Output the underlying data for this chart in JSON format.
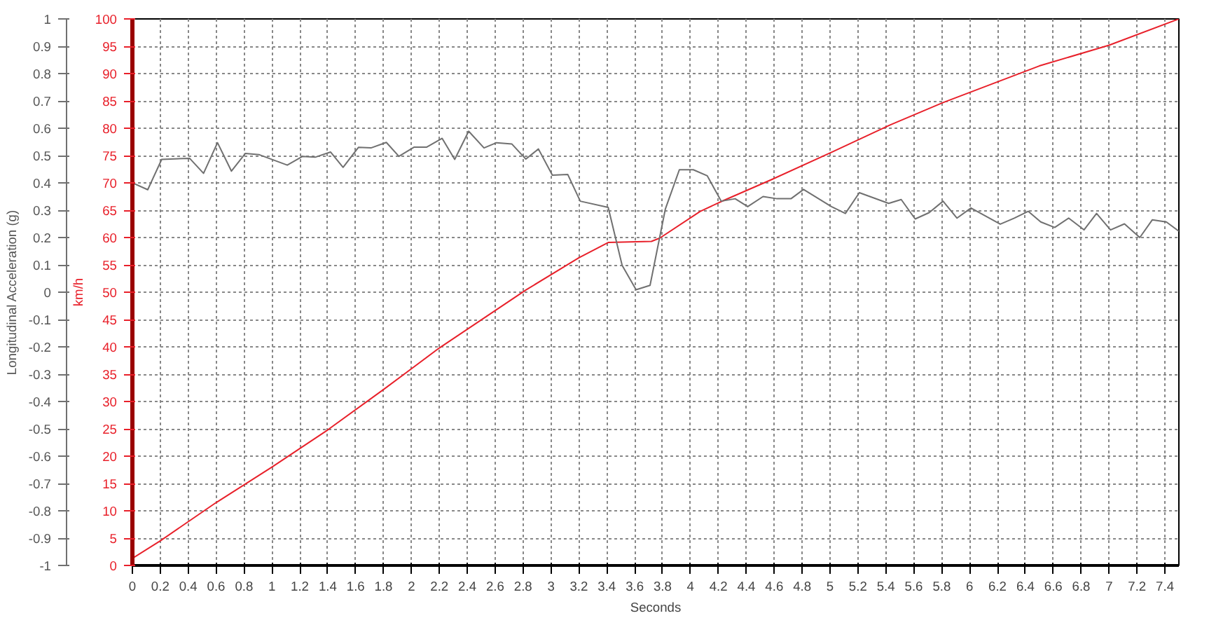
{
  "chart_data": {
    "type": "line",
    "xlabel": "Seconds",
    "ylabel": "km/h",
    "y2label": "Longitudinal Acceleration (g)",
    "xlim": [
      0,
      7.5
    ],
    "xticks": [
      0,
      0.2,
      0.4,
      0.6,
      0.8,
      1,
      1.2,
      1.4,
      1.6,
      1.8,
      2,
      2.2,
      2.4,
      2.6,
      2.8,
      3,
      3.2,
      3.4,
      3.6,
      3.8,
      4,
      4.2,
      4.4,
      4.6,
      4.8,
      5,
      5.2,
      5.4,
      5.6,
      5.8,
      6,
      6.2,
      6.4,
      6.6,
      6.8,
      7,
      7.2,
      7.4
    ],
    "ylim": [
      0,
      100
    ],
    "yticks": [
      0,
      5,
      10,
      15,
      20,
      25,
      30,
      35,
      40,
      45,
      50,
      55,
      60,
      65,
      70,
      75,
      80,
      85,
      90,
      95,
      100
    ],
    "y2lim": [
      -1,
      1
    ],
    "y2ticks": [
      -1,
      -0.9,
      -0.8,
      -0.7,
      -0.6,
      -0.5,
      -0.4,
      -0.3,
      -0.2,
      -0.1,
      0,
      0.1,
      0.2,
      0.3,
      0.4,
      0.5,
      0.6,
      0.7,
      0.8,
      0.9,
      1
    ],
    "grid": true,
    "line_style": "solid",
    "marker": "none",
    "series": [
      {
        "color": "#e8202a",
        "x": [
          0,
          0.2,
          0.6,
          1,
          1.4,
          1.8,
          2,
          2.2,
          2.82,
          3.2,
          3.41,
          3.72,
          3.78,
          4.07,
          4.23,
          4.59,
          5.01,
          5.43,
          5.81,
          6.16,
          6.5,
          7,
          7.5
        ],
        "values": [
          1.3,
          4.5,
          11.5,
          18,
          24.8,
          32.2,
          36,
          39.8,
          50.4,
          56.3,
          59.1,
          59.3,
          59.9,
          64.8,
          66.7,
          70.7,
          75.6,
          80.6,
          84.7,
          88.1,
          91.4,
          95.2,
          100
        ]
      },
      {
        "color": "#707070",
        "axis": "y2",
        "x": [
          0,
          0.11,
          0.21,
          0.41,
          0.51,
          0.61,
          0.71,
          0.81,
          0.91,
          1.11,
          1.22,
          1.31,
          1.42,
          1.51,
          1.62,
          1.71,
          1.82,
          1.91,
          2.02,
          2.11,
          2.22,
          2.31,
          2.41,
          2.52,
          2.61,
          2.72,
          2.82,
          2.91,
          3.01,
          3.12,
          3.21,
          3.41,
          3.51,
          3.61,
          3.71,
          3.82,
          3.92,
          4.02,
          4.12,
          4.22,
          4.32,
          4.41,
          4.52,
          4.62,
          4.72,
          4.81,
          5.01,
          5.11,
          5.21,
          5.42,
          5.51,
          5.61,
          5.71,
          5.81,
          5.91,
          6.01,
          6.22,
          6.32,
          6.42,
          6.51,
          6.61,
          6.71,
          6.82,
          6.91,
          7.01,
          7.11,
          7.22,
          7.31,
          7.41,
          7.5
        ],
        "values": [
          0.4,
          0.375,
          0.486,
          0.49,
          0.435,
          0.547,
          0.443,
          0.508,
          0.503,
          0.465,
          0.497,
          0.494,
          0.513,
          0.457,
          0.53,
          0.528,
          0.548,
          0.497,
          0.531,
          0.531,
          0.563,
          0.486,
          0.589,
          0.528,
          0.547,
          0.542,
          0.487,
          0.524,
          0.428,
          0.431,
          0.333,
          0.31,
          0.098,
          0.009,
          0.025,
          0.305,
          0.448,
          0.448,
          0.426,
          0.333,
          0.342,
          0.313,
          0.35,
          0.342,
          0.342,
          0.376,
          0.313,
          0.288,
          0.364,
          0.325,
          0.339,
          0.268,
          0.291,
          0.333,
          0.271,
          0.308,
          0.249,
          0.271,
          0.296,
          0.257,
          0.237,
          0.271,
          0.228,
          0.288,
          0.228,
          0.25,
          0.2,
          0.265,
          0.257,
          0.223
        ]
      }
    ]
  }
}
